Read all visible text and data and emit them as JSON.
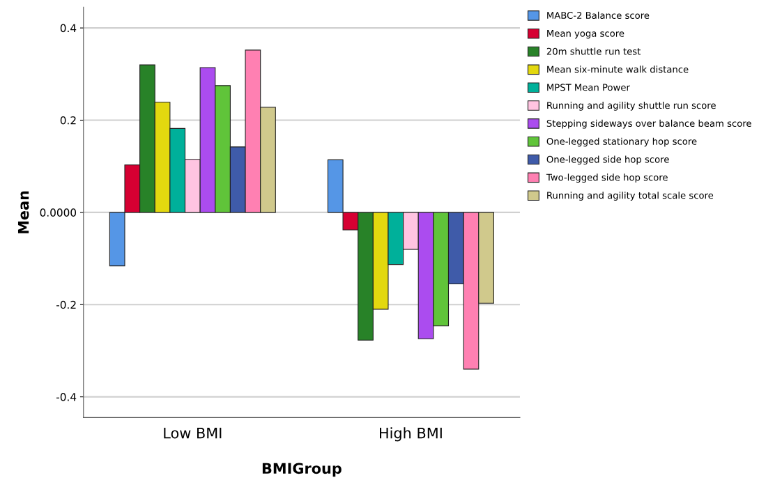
{
  "chart_data": {
    "type": "bar",
    "xlabel": "BMIGroup",
    "ylabel": "Mean",
    "categories": [
      "Low BMI",
      "High BMI"
    ],
    "series": [
      {
        "name": "MABC-2 Balance score",
        "color": "#5596e6",
        "values": [
          -0.116,
          0.114
        ]
      },
      {
        "name": "Mean yoga score",
        "color": "#d60032",
        "values": [
          0.103,
          -0.038
        ]
      },
      {
        "name": "20m shuttle run test",
        "color": "#288228",
        "values": [
          0.32,
          -0.277
        ]
      },
      {
        "name": "Mean six-minute walk distance",
        "color": "#e3d80f",
        "values": [
          0.239,
          -0.21
        ]
      },
      {
        "name": "MPST Mean Power",
        "color": "#00b09a",
        "values": [
          0.182,
          -0.113
        ]
      },
      {
        "name": "Running and agility shuttle run score",
        "color": "#ffc4e1",
        "values": [
          0.115,
          -0.08
        ]
      },
      {
        "name": "Stepping sideways over balance beam score",
        "color": "#ab4cef",
        "values": [
          0.314,
          -0.274
        ]
      },
      {
        "name": "One-legged stationary hop score",
        "color": "#60c43a",
        "values": [
          0.275,
          -0.246
        ]
      },
      {
        "name": "One-legged side hop score",
        "color": "#3f5ba9",
        "values": [
          0.142,
          -0.155
        ]
      },
      {
        "name": "Two-legged side hop score",
        "color": "#ff80b2",
        "values": [
          0.352,
          -0.34
        ]
      },
      {
        "name": "Running and agility total scale score",
        "color": "#d0c98c",
        "values": [
          0.228,
          -0.197
        ]
      }
    ],
    "ylim": [
      -0.445,
      0.445
    ],
    "yticks": [
      {
        "value": -0.4,
        "label": "-0.4"
      },
      {
        "value": -0.2,
        "label": "-0.2"
      },
      {
        "value": 0,
        "label": "0.0000"
      },
      0.2,
      0.4
    ],
    "grid": "y",
    "legend": "top right"
  }
}
